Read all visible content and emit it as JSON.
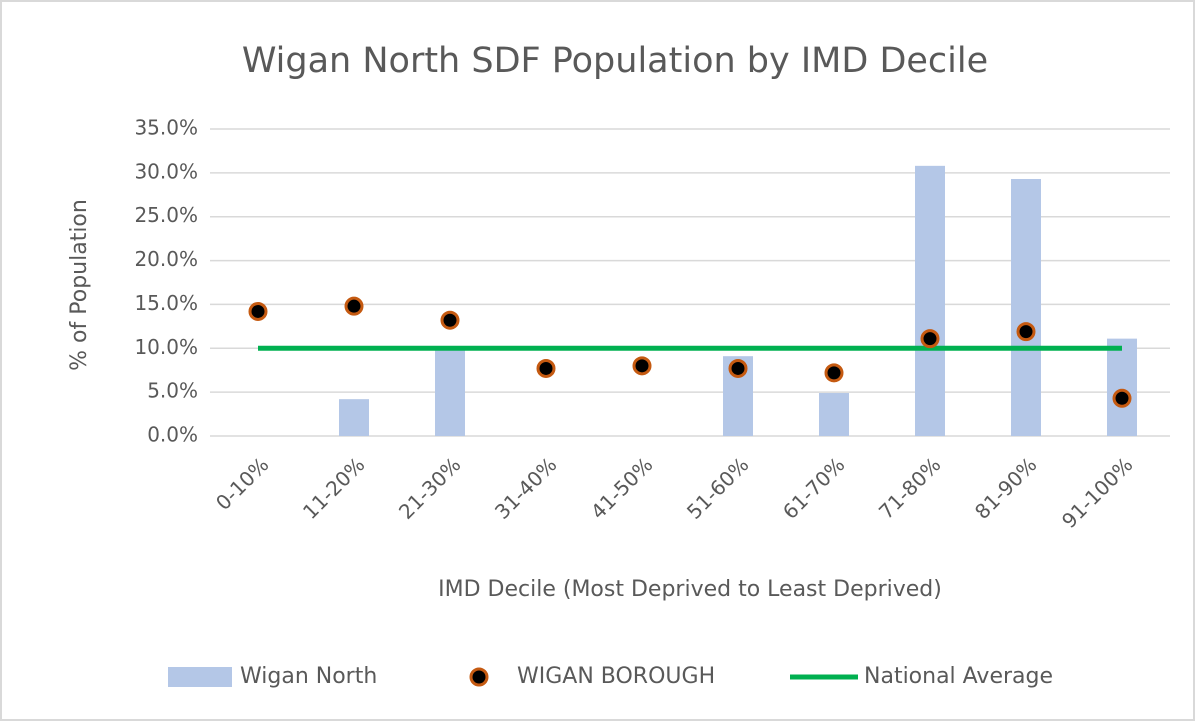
{
  "chart_data": {
    "type": "bar",
    "title": "Wigan North SDF Population by IMD Decile",
    "xlabel": "IMD Decile (Most Deprived to Least Deprived)",
    "ylabel": "% of Population",
    "categories": [
      "0-10%",
      "11-20%",
      "21-30%",
      "31-40%",
      "41-50%",
      "51-60%",
      "61-70%",
      "71-80%",
      "81-90%",
      "91-100%"
    ],
    "series": [
      {
        "name": "Wigan North",
        "type": "bar",
        "color": "#b4c7e7",
        "values": [
          0,
          4.2,
          9.8,
          0,
          0,
          9.1,
          4.9,
          30.8,
          29.3,
          11.1
        ]
      },
      {
        "name": "WIGAN BOROUGH",
        "type": "scatter",
        "color": "#000000",
        "values": [
          14.2,
          14.8,
          13.2,
          7.7,
          8.0,
          7.7,
          7.2,
          11.1,
          11.9,
          4.3
        ]
      },
      {
        "name": "National Average",
        "type": "line",
        "color": "#00b050",
        "values": [
          10,
          10,
          10,
          10,
          10,
          10,
          10,
          10,
          10,
          10
        ]
      }
    ],
    "ylim": [
      0,
      35
    ],
    "yticks": [
      {
        "value": 0,
        "label": "0.0%"
      },
      {
        "value": 5,
        "label": "5.0%"
      },
      {
        "value": 10,
        "label": "10.0%"
      },
      {
        "value": 15,
        "label": "15.0%"
      },
      {
        "value": 20,
        "label": "20.0%"
      },
      {
        "value": 25,
        "label": "25.0%"
      },
      {
        "value": 30,
        "label": "30.0%"
      },
      {
        "value": 35,
        "label": "35.0%"
      }
    ],
    "grid": true,
    "legend": "bottom"
  }
}
